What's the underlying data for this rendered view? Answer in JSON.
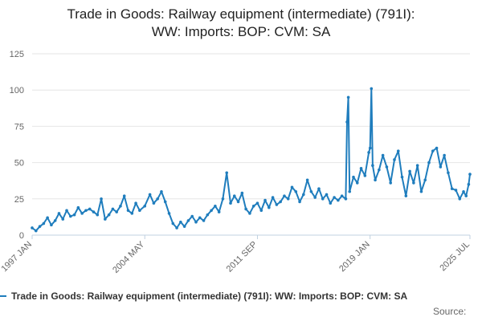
{
  "colors": {
    "series": "#1f7dbd",
    "grid": "#e6e6e6",
    "axis": "#c0d0e0"
  },
  "legend": {
    "label": "Trade in Goods: Railway equipment (intermediate) (791I): WW: Imports: BOP: CVM: SA"
  },
  "source_label": "Source:",
  "chart_data": {
    "type": "line",
    "title": "Trade in Goods: Railway equipment (intermediate) (791I): WW: Imports: BOP: CVM: SA",
    "title_lines": [
      "Trade in Goods: Railway equipment (intermediate) (791I):",
      "WW: Imports: BOP: CVM: SA"
    ],
    "xlabel": "",
    "ylabel": "",
    "ylim": [
      0,
      125
    ],
    "yticks": [
      0,
      25,
      50,
      75,
      100,
      125
    ],
    "x_range": [
      "1997-01",
      "2025-07"
    ],
    "xtick_labels": [
      {
        "label": "1997 JAN",
        "date": "1997-01"
      },
      {
        "label": "2004 MAY",
        "date": "2004-05"
      },
      {
        "label": "2011 SEP",
        "date": "2011-09"
      },
      {
        "label": "2019 JAN",
        "date": "2019-01"
      },
      {
        "label": "2025 JUL",
        "date": "2025-07"
      }
    ],
    "grid": true,
    "legend_position": "bottom",
    "series": [
      {
        "name": "Trade in Goods: Railway equipment (intermediate) (791I): WW: Imports: BOP: CVM: SA",
        "frequency": "monthly",
        "start": "1997-01",
        "note": "values estimated from the plotted line; dense monthly series shown with key points",
        "points": [
          [
            "1997-01",
            5
          ],
          [
            "1997-04",
            3
          ],
          [
            "1997-07",
            6
          ],
          [
            "1997-10",
            8
          ],
          [
            "1998-01",
            12
          ],
          [
            "1998-04",
            7
          ],
          [
            "1998-07",
            10
          ],
          [
            "1998-10",
            15
          ],
          [
            "1999-01",
            11
          ],
          [
            "1999-04",
            17
          ],
          [
            "1999-07",
            13
          ],
          [
            "1999-10",
            14
          ],
          [
            "2000-01",
            19
          ],
          [
            "2000-04",
            15
          ],
          [
            "2000-07",
            17
          ],
          [
            "2000-10",
            18
          ],
          [
            "2001-01",
            16
          ],
          [
            "2001-04",
            14
          ],
          [
            "2001-07",
            25
          ],
          [
            "2001-10",
            11
          ],
          [
            "2002-01",
            14
          ],
          [
            "2002-04",
            18
          ],
          [
            "2002-07",
            16
          ],
          [
            "2002-10",
            20
          ],
          [
            "2003-01",
            27
          ],
          [
            "2003-04",
            17
          ],
          [
            "2003-07",
            15
          ],
          [
            "2003-10",
            22
          ],
          [
            "2004-01",
            17
          ],
          [
            "2004-05",
            20
          ],
          [
            "2004-09",
            28
          ],
          [
            "2004-12",
            22
          ],
          [
            "2005-03",
            25
          ],
          [
            "2005-06",
            30
          ],
          [
            "2005-09",
            23
          ],
          [
            "2005-12",
            15
          ],
          [
            "2006-03",
            8
          ],
          [
            "2006-06",
            5
          ],
          [
            "2006-09",
            9
          ],
          [
            "2006-12",
            6
          ],
          [
            "2007-03",
            10
          ],
          [
            "2007-06",
            13
          ],
          [
            "2007-09",
            9
          ],
          [
            "2007-12",
            12
          ],
          [
            "2008-03",
            10
          ],
          [
            "2008-06",
            14
          ],
          [
            "2008-09",
            17
          ],
          [
            "2008-12",
            20
          ],
          [
            "2009-03",
            16
          ],
          [
            "2009-06",
            25
          ],
          [
            "2009-09",
            43
          ],
          [
            "2009-12",
            22
          ],
          [
            "2010-03",
            27
          ],
          [
            "2010-06",
            23
          ],
          [
            "2010-09",
            29
          ],
          [
            "2010-12",
            18
          ],
          [
            "2011-03",
            15
          ],
          [
            "2011-06",
            20
          ],
          [
            "2011-09",
            22
          ],
          [
            "2011-12",
            17
          ],
          [
            "2012-03",
            24
          ],
          [
            "2012-06",
            19
          ],
          [
            "2012-09",
            26
          ],
          [
            "2012-12",
            21
          ],
          [
            "2013-03",
            23
          ],
          [
            "2013-06",
            27
          ],
          [
            "2013-09",
            25
          ],
          [
            "2013-12",
            33
          ],
          [
            "2014-03",
            30
          ],
          [
            "2014-06",
            23
          ],
          [
            "2014-09",
            28
          ],
          [
            "2014-12",
            38
          ],
          [
            "2015-03",
            30
          ],
          [
            "2015-06",
            26
          ],
          [
            "2015-09",
            32
          ],
          [
            "2015-12",
            25
          ],
          [
            "2016-03",
            28
          ],
          [
            "2016-06",
            22
          ],
          [
            "2016-09",
            26
          ],
          [
            "2016-12",
            24
          ],
          [
            "2017-03",
            27
          ],
          [
            "2017-06",
            25
          ],
          [
            "2017-07",
            78
          ],
          [
            "2017-08",
            95
          ],
          [
            "2017-09",
            30
          ],
          [
            "2017-12",
            40
          ],
          [
            "2018-03",
            36
          ],
          [
            "2018-06",
            46
          ],
          [
            "2018-09",
            41
          ],
          [
            "2018-12",
            57
          ],
          [
            "2019-01",
            60
          ],
          [
            "2019-02",
            101
          ],
          [
            "2019-03",
            48
          ],
          [
            "2019-05",
            38
          ],
          [
            "2019-08",
            45
          ],
          [
            "2019-11",
            55
          ],
          [
            "2020-02",
            47
          ],
          [
            "2020-05",
            36
          ],
          [
            "2020-08",
            52
          ],
          [
            "2020-11",
            58
          ],
          [
            "2021-02",
            40
          ],
          [
            "2021-05",
            27
          ],
          [
            "2021-08",
            44
          ],
          [
            "2021-11",
            36
          ],
          [
            "2022-02",
            48
          ],
          [
            "2022-05",
            30
          ],
          [
            "2022-08",
            38
          ],
          [
            "2022-11",
            50
          ],
          [
            "2023-02",
            58
          ],
          [
            "2023-05",
            60
          ],
          [
            "2023-08",
            47
          ],
          [
            "2023-11",
            55
          ],
          [
            "2024-02",
            43
          ],
          [
            "2024-05",
            32
          ],
          [
            "2024-08",
            31
          ],
          [
            "2024-11",
            25
          ],
          [
            "2025-02",
            30
          ],
          [
            "2025-04",
            27
          ],
          [
            "2025-06",
            35
          ],
          [
            "2025-07",
            42
          ]
        ]
      }
    ]
  }
}
